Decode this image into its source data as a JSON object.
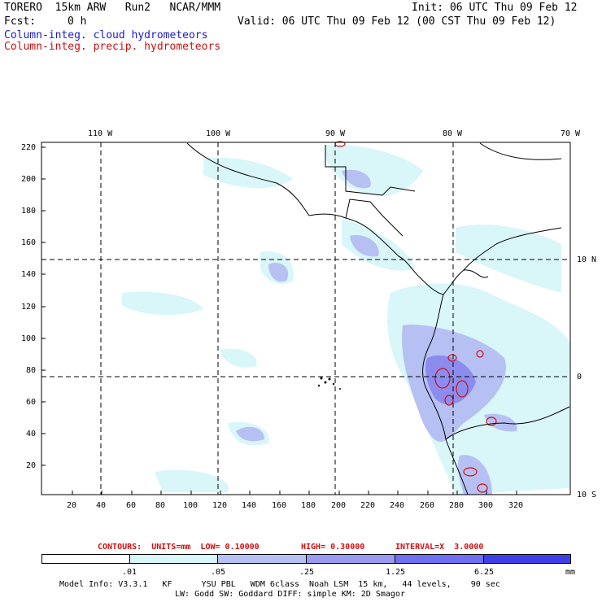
{
  "header": {
    "model": "TORERO  15km ARW   Run2   NCAR/MMM",
    "init": "Init: 06 UTC Thu 09 Feb 12",
    "fcst_label": "Fcst:",
    "fcst_value": "0 h",
    "valid": "Valid: 06 UTC Thu 09 Feb 12 (00 CST Thu 09 Feb 12)",
    "field_cloud": "Column-integ. cloud hydrometeors",
    "field_precip": "Column-integ. precip. hydrometeors"
  },
  "map": {
    "lon_labels": [
      "110 W",
      "100 W",
      "90 W",
      "80 W",
      "70 W"
    ],
    "lat_labels": [
      "10 N",
      "0",
      "10 S"
    ],
    "y_ticks": [
      "220",
      "200",
      "180",
      "160",
      "140",
      "120",
      "100",
      "80",
      "60",
      "40",
      "20"
    ],
    "x_ticks": [
      "20",
      "40",
      "60",
      "80",
      "100",
      "120",
      "140",
      "160",
      "180",
      "200",
      "220",
      "240",
      "260",
      "280",
      "300",
      "320"
    ]
  },
  "contours": {
    "units": "CONTOURS:  UNITS=mm  LOW= 0.10000",
    "high": "HIGH= 0.30000",
    "interval": "INTERVAL=X  3.0000"
  },
  "colorbar": {
    "labels": [
      ".01",
      ".05",
      ".25",
      "1.25",
      "6.25"
    ],
    "unit": "mm",
    "colors": [
      "#ffffff",
      "#d9f6f9",
      "#b7c0f3",
      "#9a9af0",
      "#6f6ff0",
      "#3f3fe8",
      "#2020e0"
    ]
  },
  "footer": {
    "line1": "Model Info: V3.3.1   KF      YSU PBL   WDM 6class  Noah LSM  15 km,   44 levels,    90 sec",
    "line2": "LW: Godd SW: Goddard DIFF: simple KM: 2D Smagor"
  }
}
